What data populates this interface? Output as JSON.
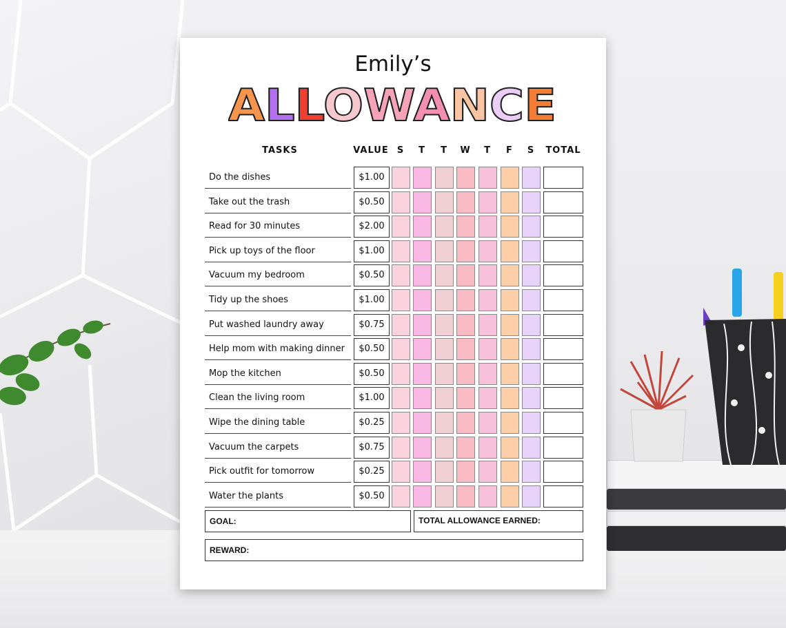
{
  "sheet": {
    "owner": "Emily’s",
    "headline": "ALLOWANCE",
    "columns": {
      "tasks": "TASKS",
      "value": "VALUE",
      "days": [
        "S",
        "T",
        "T",
        "W",
        "T",
        "F",
        "S"
      ],
      "total": "TOTAL"
    },
    "tasks": [
      {
        "name": "Do the dishes",
        "value": "$1.00"
      },
      {
        "name": "Take out the trash",
        "value": "$0.50"
      },
      {
        "name": "Read for 30 minutes",
        "value": "$2.00"
      },
      {
        "name": "Pick up toys of the floor",
        "value": "$1.00"
      },
      {
        "name": "Vacuum my bedroom",
        "value": "$0.50"
      },
      {
        "name": "Tidy up the shoes",
        "value": "$1.00"
      },
      {
        "name": "Put washed laundry away",
        "value": "$0.75"
      },
      {
        "name": "Help mom with making dinner",
        "value": "$0.50"
      },
      {
        "name": "Mop the kitchen",
        "value": "$0.50"
      },
      {
        "name": "Clean the living room",
        "value": "$1.00"
      },
      {
        "name": "Wipe the dining table",
        "value": "$0.25"
      },
      {
        "name": "Vacuum the carpets",
        "value": "$0.75"
      },
      {
        "name": "Pick outfit for tomorrow",
        "value": "$0.25"
      },
      {
        "name": "Water the plants",
        "value": "$0.50"
      }
    ],
    "goal_label": "GOAL:",
    "total_earned_label": "TOTAL ALLOWANCE EARNED:",
    "reward_label": "REWARD:"
  },
  "colors": {
    "letters": [
      "#f7944e",
      "#b36ff0",
      "#ee3f31",
      "#f7c9cf",
      "#f6a3b7",
      "#f48fb1",
      "#fbc4a3",
      "#e9cdf6",
      "#f47c34"
    ],
    "day_columns": [
      "#fbd3df",
      "#f9b9e4",
      "#f1d0d4",
      "#f9bcc4",
      "#f7c0db",
      "#fccfa9",
      "#e8d4fb"
    ],
    "paper": "#ffffff"
  }
}
